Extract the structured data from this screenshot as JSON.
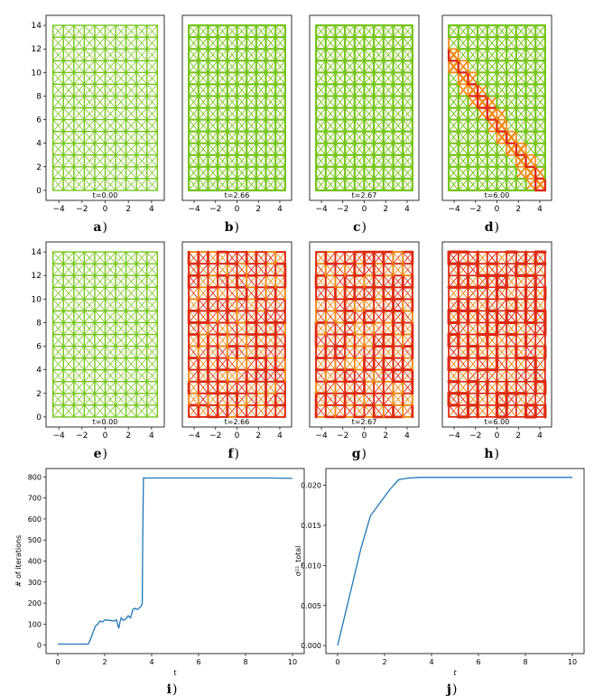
{
  "colors": {
    "green": "#77c41a",
    "orange": "#f08a17",
    "red": "#dd2a10",
    "line": "#1f77b4"
  },
  "lattice_panels": [
    {
      "id": "a",
      "caption": "a",
      "time_label": "t=0.00",
      "state": "intact"
    },
    {
      "id": "b",
      "caption": "b",
      "time_label": "t=2.66",
      "state": "strained"
    },
    {
      "id": "c",
      "caption": "c",
      "time_label": "t=2.67",
      "state": "strained"
    },
    {
      "id": "d",
      "caption": "d",
      "time_label": "t=6.00",
      "state": "diagonal-crack"
    },
    {
      "id": "e",
      "caption": "e",
      "time_label": "t=0.00",
      "state": "intact"
    },
    {
      "id": "f",
      "caption": "f",
      "time_label": "t=2.66",
      "state": "stressed"
    },
    {
      "id": "g",
      "caption": "g",
      "time_label": "t=2.67",
      "state": "stressed"
    },
    {
      "id": "h",
      "caption": "h",
      "time_label": "t=6.00",
      "state": "fractured"
    }
  ],
  "lattice_axes": {
    "x_ticks": [
      "−4",
      "−2",
      "0",
      "2",
      "4"
    ],
    "y_ticks": [
      "0",
      "2",
      "4",
      "6",
      "8",
      "10",
      "12",
      "14"
    ]
  },
  "chart_data": [
    {
      "id": "i",
      "type": "line",
      "caption": "i",
      "xlabel": "t",
      "ylabel": "# of iterations",
      "xlim": [
        -0.5,
        10.5
      ],
      "ylim": [
        -40,
        840
      ],
      "x_ticks": [
        "0",
        "2",
        "4",
        "6",
        "8",
        "10"
      ],
      "y_ticks": [
        "0",
        "100",
        "200",
        "300",
        "400",
        "500",
        "600",
        "700",
        "800"
      ],
      "x": [
        0,
        0.5,
        1.0,
        1.3,
        1.4,
        1.5,
        1.6,
        1.7,
        1.8,
        1.9,
        2.0,
        2.2,
        2.4,
        2.5,
        2.55,
        2.6,
        2.65,
        2.7,
        2.8,
        2.9,
        3.0,
        3.1,
        3.2,
        3.3,
        3.4,
        3.5,
        3.55,
        3.6,
        3.62,
        3.65,
        3.7,
        4.0,
        5.0,
        6.0,
        7.0,
        8.0,
        9.0,
        10.0
      ],
      "y": [
        5,
        5,
        5,
        5,
        30,
        60,
        90,
        100,
        115,
        110,
        120,
        118,
        115,
        120,
        100,
        80,
        110,
        130,
        118,
        125,
        140,
        130,
        170,
        175,
        170,
        180,
        185,
        200,
        500,
        795,
        795,
        795,
        795,
        795,
        795,
        795,
        795,
        793
      ]
    },
    {
      "id": "j",
      "type": "line",
      "caption": "j",
      "xlabel": "t",
      "ylabel": "σ²²_total",
      "xlim": [
        -0.5,
        10.5
      ],
      "ylim": [
        -0.001,
        0.0221
      ],
      "x_ticks": [
        "0",
        "2",
        "4",
        "6",
        "8",
        "10"
      ],
      "y_ticks": [
        "0.000",
        "0.005",
        "0.010",
        "0.015",
        "0.020"
      ],
      "x": [
        0,
        1.0,
        1.4,
        1.8,
        2.2,
        2.6,
        3.0,
        3.5,
        4.0,
        6.0,
        8.0,
        10.0
      ],
      "y": [
        0.0,
        0.0122,
        0.0162,
        0.0178,
        0.0194,
        0.0207,
        0.0209,
        0.021,
        0.021,
        0.021,
        0.021,
        0.021
      ]
    }
  ]
}
